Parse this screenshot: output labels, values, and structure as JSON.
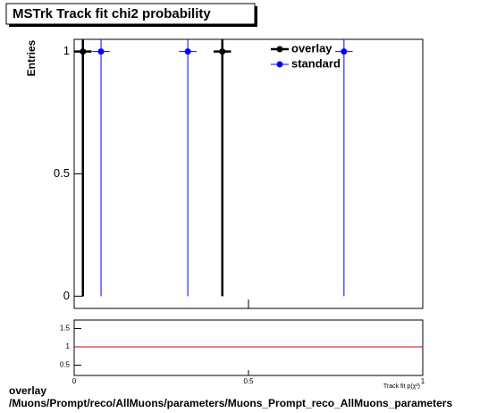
{
  "chart_data": [
    {
      "type": "scatter",
      "title": "MSTrk Track fit chi2 probability",
      "ylabel": "Entries",
      "xlim": [
        0,
        1
      ],
      "ylim": [
        -0.05,
        1.05
      ],
      "yticks": [
        0,
        0.5,
        1
      ],
      "legend": "top-right",
      "series": [
        {
          "name": "overlay",
          "color": "#000000",
          "x": [
            0.025,
            0.425
          ],
          "values": [
            1,
            1
          ],
          "errors": [
            1,
            1
          ],
          "xerr": [
            0.025,
            0.025
          ]
        },
        {
          "name": "standard",
          "color": "#0000ff",
          "x": [
            0.077,
            0.326,
            0.774
          ],
          "values": [
            1,
            1,
            1
          ],
          "errors": [
            1,
            1,
            1
          ],
          "xerr": [
            0.025,
            0.025,
            0.025
          ]
        }
      ]
    },
    {
      "type": "ratio",
      "xlabel": "Track fit p(χ²)",
      "xlim": [
        0,
        1
      ],
      "xticks": [
        0,
        0.5,
        1
      ],
      "ylim": [
        0.22,
        1.73
      ],
      "yticks": [
        0.5,
        1,
        1.5
      ],
      "line_value": 1,
      "line_color": "#cc0000"
    }
  ],
  "footer": [
    "overlay",
    "/Muons/Prompt/reco/AllMuons/parameters/Muons_Prompt_reco_AllMuons_parameters"
  ]
}
